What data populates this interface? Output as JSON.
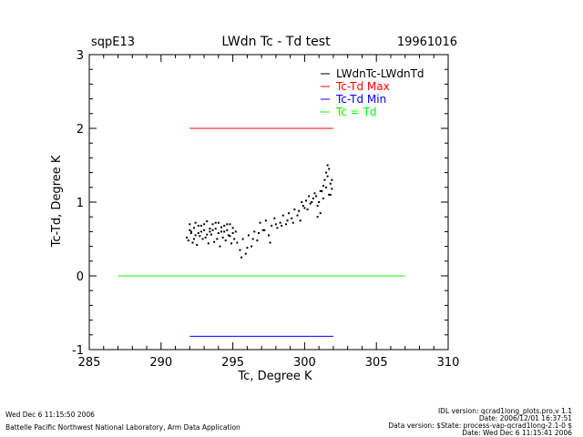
{
  "header": {
    "site": "sqpE13",
    "title": "LWdn Tc - Td test",
    "date": "19961016"
  },
  "footer": {
    "left_line1": "Wed Dec  6 11:15:50 2006",
    "left_line2": "Battelle Pacific Northwest National Laboratory, Arm Data Application",
    "right_lines": [
      "IDL version: qcrad1long_plots.pro,v 1.1",
      "Date: 2006/12/01 16:37:51",
      "Data version: $State: process-vap-qcrad1long-2.1-0 $",
      "Date: Wed Dec  6 11:15:41 2006"
    ]
  },
  "chart_data": {
    "type": "scatter",
    "title": "LWdn Tc - Td test",
    "xlabel": "Tc, Degree K",
    "ylabel": "Tc-Td, Degree K",
    "xlim": [
      285,
      310
    ],
    "ylim": [
      -1,
      3
    ],
    "x_ticks": [
      285,
      290,
      295,
      300,
      305,
      310
    ],
    "y_ticks": [
      -1,
      0,
      1,
      2,
      3
    ],
    "legend_position": "top-right",
    "grid": false,
    "series": [
      {
        "name": "LWdnTc-LWdnTd",
        "color": "#000000",
        "style": "points",
        "x": [
          291.8,
          292.0,
          292.1,
          292.3,
          292.4,
          292.6,
          292.8,
          293.0,
          293.2,
          293.4,
          293.6,
          293.8,
          294.0,
          294.2,
          294.4,
          294.6,
          294.8,
          295.0,
          295.2,
          291.9,
          292.2,
          292.5,
          292.9,
          293.3,
          293.7,
          294.1,
          294.5,
          294.9,
          292.0,
          292.4,
          292.8,
          293.2,
          293.6,
          294.0,
          294.4,
          294.8,
          292.3,
          292.7,
          293.1,
          293.5,
          293.9,
          294.3,
          294.7,
          295.1,
          292.1,
          292.6,
          293.0,
          293.4,
          293.8,
          294.2,
          294.6,
          295.0,
          295.3,
          295.5,
          295.7,
          295.9,
          296.1,
          296.3,
          296.5,
          296.7,
          296.9,
          297.1,
          297.3,
          297.5,
          297.7,
          297.9,
          298.1,
          298.3,
          298.5,
          298.7,
          298.9,
          299.1,
          299.3,
          299.5,
          299.7,
          295.6,
          296.0,
          296.4,
          296.8,
          297.2,
          297.6,
          298.0,
          298.4,
          298.8,
          299.2,
          299.6,
          299.9,
          300.1,
          300.3,
          300.5,
          300.7,
          300.9,
          301.1,
          301.3,
          301.5,
          301.7,
          301.8,
          301.9,
          300.2,
          300.6,
          301.0,
          301.4,
          301.6,
          301.2,
          300.8,
          300.4,
          300.0,
          299.8,
          301.5,
          301.7,
          301.9,
          301.3,
          301.1,
          300.9,
          301.6,
          301.8
        ],
        "y": [
          0.52,
          0.62,
          0.58,
          0.65,
          0.55,
          0.68,
          0.6,
          0.7,
          0.56,
          0.64,
          0.62,
          0.72,
          0.58,
          0.66,
          0.6,
          0.7,
          0.54,
          0.65,
          0.6,
          0.48,
          0.45,
          0.42,
          0.5,
          0.44,
          0.46,
          0.4,
          0.48,
          0.44,
          0.7,
          0.72,
          0.68,
          0.74,
          0.7,
          0.72,
          0.68,
          0.7,
          0.5,
          0.54,
          0.52,
          0.56,
          0.5,
          0.52,
          0.55,
          0.5,
          0.6,
          0.58,
          0.62,
          0.6,
          0.64,
          0.6,
          0.62,
          0.58,
          0.45,
          0.35,
          0.5,
          0.3,
          0.55,
          0.4,
          0.6,
          0.48,
          0.72,
          0.62,
          0.75,
          0.55,
          0.68,
          0.78,
          0.65,
          0.72,
          0.82,
          0.7,
          0.85,
          0.78,
          0.9,
          0.82,
          0.75,
          0.25,
          0.38,
          0.5,
          0.58,
          0.62,
          0.45,
          0.7,
          0.68,
          0.75,
          0.72,
          0.88,
          0.95,
          1.02,
          1.08,
          1.0,
          1.12,
          0.95,
          1.15,
          1.05,
          1.2,
          1.1,
          1.25,
          1.18,
          0.9,
          1.05,
          1.0,
          1.3,
          1.35,
          1.15,
          1.08,
          0.98,
          0.92,
          1.0,
          1.4,
          1.45,
          1.3,
          1.22,
          0.85,
          0.8,
          1.5,
          1.1
        ]
      },
      {
        "name": "Tc-Td Max",
        "color": "#ff0000",
        "style": "line",
        "x": [
          292,
          302
        ],
        "y": [
          2.0,
          2.0
        ]
      },
      {
        "name": "Tc-Td Min",
        "color": "#0000ff",
        "style": "line",
        "x": [
          292,
          302
        ],
        "y": [
          -0.82,
          -0.82
        ]
      },
      {
        "name": "Tc = Td",
        "color": "#00ff00",
        "style": "line",
        "x": [
          287,
          307
        ],
        "y": [
          0,
          0
        ]
      }
    ]
  }
}
